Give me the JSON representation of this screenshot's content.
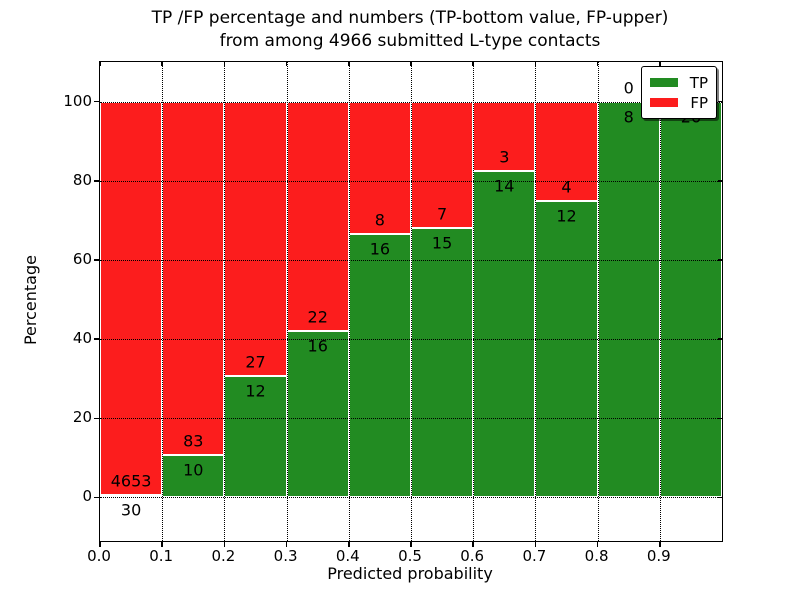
{
  "title": {
    "line1": "TP /FP percentage and numbers (TP-bottom value, FP-upper)",
    "line2": "from among 4966 submitted L-type contacts"
  },
  "axes": {
    "xlabel": "Predicted probability",
    "ylabel": "Percentage",
    "x_tick_labels": [
      "0.0",
      "0.1",
      "0.2",
      "0.3",
      "0.4",
      "0.5",
      "0.6",
      "0.7",
      "0.8",
      "0.9"
    ],
    "y_tick_labels": [
      "0",
      "20",
      "40",
      "60",
      "80",
      "100"
    ]
  },
  "legend": {
    "entries": [
      {
        "label": "TP",
        "color": "#228b22"
      },
      {
        "label": "FP",
        "color": "#fc1d1d"
      }
    ],
    "position": "upper right"
  },
  "chart_data": {
    "type": "bar",
    "stacked": true,
    "title": "TP /FP percentage and numbers (TP-bottom value, FP-upper) from among 4966 submitted L-type contacts",
    "xlabel": "Predicted probability",
    "ylabel": "Percentage",
    "categories": [
      "0.0-0.1",
      "0.1-0.2",
      "0.2-0.3",
      "0.3-0.4",
      "0.4-0.5",
      "0.5-0.6",
      "0.6-0.7",
      "0.7-0.8",
      "0.8-0.9",
      "0.9-1.0"
    ],
    "x_bin_edges": [
      0.0,
      0.1,
      0.2,
      0.3,
      0.4,
      0.5,
      0.6,
      0.7,
      0.8,
      0.9,
      1.0
    ],
    "series": [
      {
        "name": "TP",
        "color": "#228b22",
        "counts": [
          30,
          10,
          12,
          16,
          16,
          15,
          14,
          12,
          8,
          26
        ]
      },
      {
        "name": "FP",
        "color": "#fc1d1d",
        "counts": [
          4653,
          83,
          27,
          22,
          8,
          7,
          3,
          4,
          0,
          0
        ]
      }
    ],
    "tp_percentages": [
      0.64,
      10.75,
      30.77,
      42.11,
      66.67,
      68.18,
      82.35,
      75.0,
      100.0,
      100.0
    ],
    "total_contacts": 4966,
    "annotation_rule": "FP count printed above TP/FP boundary, TP count printed below it",
    "xlim": [
      0.0,
      1.0
    ],
    "ylim": [
      -11,
      110
    ],
    "y_ticks": [
      0,
      20,
      40,
      60,
      80,
      100
    ],
    "x_ticks": [
      0.0,
      0.1,
      0.2,
      0.3,
      0.4,
      0.5,
      0.6,
      0.7,
      0.8,
      0.9
    ],
    "grid": "dotted",
    "legend_position": "upper right"
  }
}
